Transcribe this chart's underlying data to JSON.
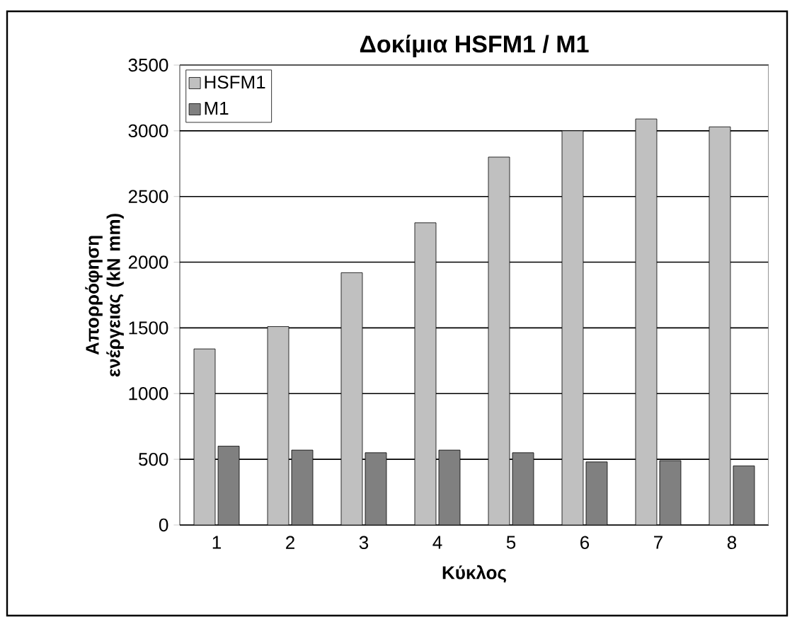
{
  "chart_data": {
    "type": "bar",
    "title": "Δοκίμια HSFM1 / M1",
    "xlabel": "Κύκλος",
    "ylabel": "Απορρόφηση ενέργειας (kN mm)",
    "categories": [
      "1",
      "2",
      "3",
      "4",
      "5",
      "6",
      "7",
      "8"
    ],
    "series": [
      {
        "name": "HSFM1",
        "color": "#c0c0c0",
        "values": [
          1340,
          1510,
          1920,
          2300,
          2800,
          3000,
          3090,
          3030
        ]
      },
      {
        "name": "M1",
        "color": "#808080",
        "values": [
          600,
          570,
          550,
          570,
          550,
          480,
          490,
          450
        ]
      }
    ],
    "ylim": [
      0,
      3500
    ],
    "yticks": [
      0,
      500,
      1000,
      1500,
      2000,
      2500,
      3000,
      3500
    ],
    "grid": "y",
    "legend": "top left"
  }
}
